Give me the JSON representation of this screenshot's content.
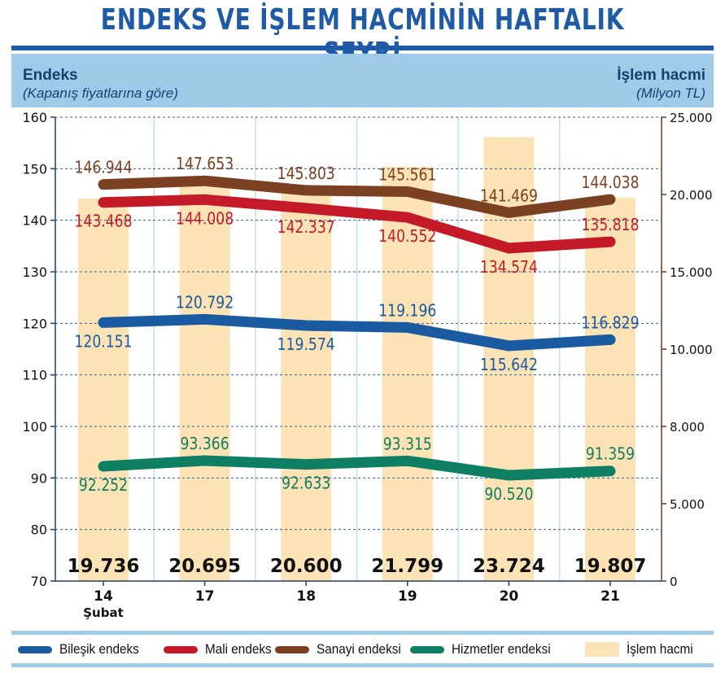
{
  "header": {
    "title": "ENDEKS VE İŞLEM HACMİNİN HAFTALIK SEYRİ",
    "left_axis_title": "Endeks",
    "left_axis_subtitle": "(Kapanış fiyatlarına göre)",
    "right_axis_title": "İşlem hacmi",
    "right_axis_subtitle": "(Milyon TL)"
  },
  "chart_data": {
    "type": "bar",
    "title": "ENDEKS VE İŞLEM HACMİNİN HAFTALIK SEYRİ",
    "categories": [
      "14",
      "17",
      "18",
      "19",
      "20",
      "21"
    ],
    "category_sublabels": [
      "Şubat",
      "",
      "",
      "",
      "",
      ""
    ],
    "left_axis": {
      "label": "Endeks",
      "sublabel": "(Kapanış fiyatlarına göre)",
      "ylim": [
        70,
        160
      ],
      "ticks": [
        "70",
        "80",
        "90",
        "100",
        "110",
        "120",
        "130",
        "140",
        "150",
        "160"
      ]
    },
    "right_axis": {
      "label": "İşlem hacmi",
      "sublabel": "(Milyon TL)",
      "ticks": [
        "0",
        "5.000",
        "8.000",
        "10.000",
        "15.000",
        "20.000",
        "25.000"
      ],
      "tick_values": [
        0,
        5000,
        8000,
        10000,
        15000,
        20000,
        25000
      ]
    },
    "bars": {
      "name": "İşlem hacmi",
      "values": [
        19736,
        20695,
        20600,
        21799,
        23724,
        19807
      ],
      "labels": [
        "19.736",
        "20.695",
        "20.600",
        "21.799",
        "23.724",
        "19.807"
      ],
      "color": "#fbe3b6"
    },
    "series": [
      {
        "name": "Sanayi endeksi",
        "color": "#7b3f22",
        "values": [
          146.944,
          147.653,
          145.803,
          145.561,
          141.469,
          144.038
        ],
        "labels": [
          "146.944",
          "147.653",
          "145.803",
          "145.561",
          "141.469",
          "144.038"
        ],
        "label_pos": [
          "above",
          "above",
          "above",
          "above",
          "above",
          "above"
        ]
      },
      {
        "name": "Mali endeks",
        "color": "#c41a28",
        "values": [
          143.468,
          144.008,
          142.337,
          140.552,
          134.574,
          135.818
        ],
        "labels": [
          "143.468",
          "144.008",
          "142.337",
          "140.552",
          "134.574",
          "135.818"
        ],
        "label_pos": [
          "below",
          "below",
          "below",
          "below",
          "below",
          "above"
        ]
      },
      {
        "name": "Bileşik endeks",
        "color": "#1a5aa0",
        "values": [
          120.151,
          120.792,
          119.574,
          119.196,
          115.642,
          116.829
        ],
        "labels": [
          "120.151",
          "120.792",
          "119.574",
          "119.196",
          "115.642",
          "116.829"
        ],
        "label_pos": [
          "below",
          "above",
          "below",
          "above",
          "below",
          "above"
        ]
      },
      {
        "name": "Hizmetler endeksi",
        "color": "#0e7f63",
        "values": [
          92.252,
          93.366,
          92.633,
          93.315,
          90.52,
          91.359
        ],
        "labels": [
          "92.252",
          "93.366",
          "92.633",
          "93.315",
          "90.520",
          "91.359"
        ],
        "label_pos": [
          "below",
          "above",
          "below",
          "above",
          "below",
          "above"
        ]
      }
    ],
    "grid": true,
    "legend_position": "bottom"
  },
  "legend": [
    {
      "label": "Bileşik endeks",
      "color": "#1a5aa0",
      "kind": "line"
    },
    {
      "label": "Mali endeks",
      "color": "#c41a28",
      "kind": "line"
    },
    {
      "label": "Sanayi endeksi",
      "color": "#7b3f22",
      "kind": "line"
    },
    {
      "label": "Hizmetler endeksi",
      "color": "#0e7f63",
      "kind": "line"
    },
    {
      "label": "İşlem hacmi",
      "color": "#fbe3b6",
      "kind": "box"
    }
  ]
}
